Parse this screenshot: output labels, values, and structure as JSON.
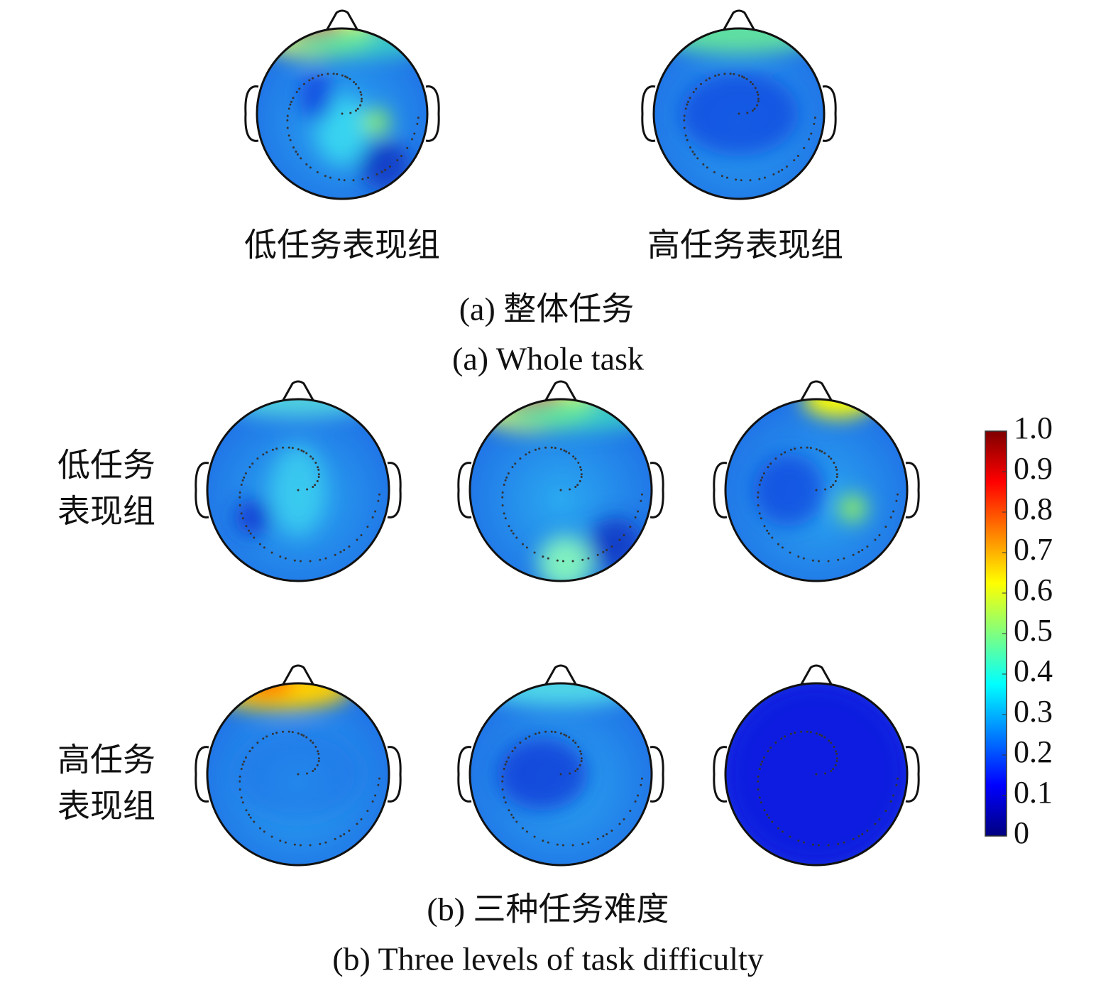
{
  "panel_a": {
    "left_label": "低任务表现组",
    "right_label": "高任务表现组",
    "caption_zh": "(a) 整体任务",
    "caption_en": "(a) Whole task"
  },
  "panel_b": {
    "row_labels": [
      [
        "低任务",
        "表现组"
      ],
      [
        "高任务",
        "表现组"
      ]
    ],
    "caption_zh": "(b) 三种任务难度",
    "caption_en": "(b) Three levels of task difficulty"
  },
  "colorbar": {
    "colors": [
      "#00007f",
      "#0000ff",
      "#007fff",
      "#00ffff",
      "#7fff7f",
      "#ffff00",
      "#ff7f00",
      "#ff0000",
      "#7f0000"
    ],
    "lim": [
      0,
      1
    ],
    "ticks": [
      0,
      0.1,
      0.2,
      0.3,
      0.4,
      0.5,
      0.6,
      0.7,
      0.8,
      0.9,
      {
        "value": 1,
        "label": "1.0"
      }
    ]
  }
}
